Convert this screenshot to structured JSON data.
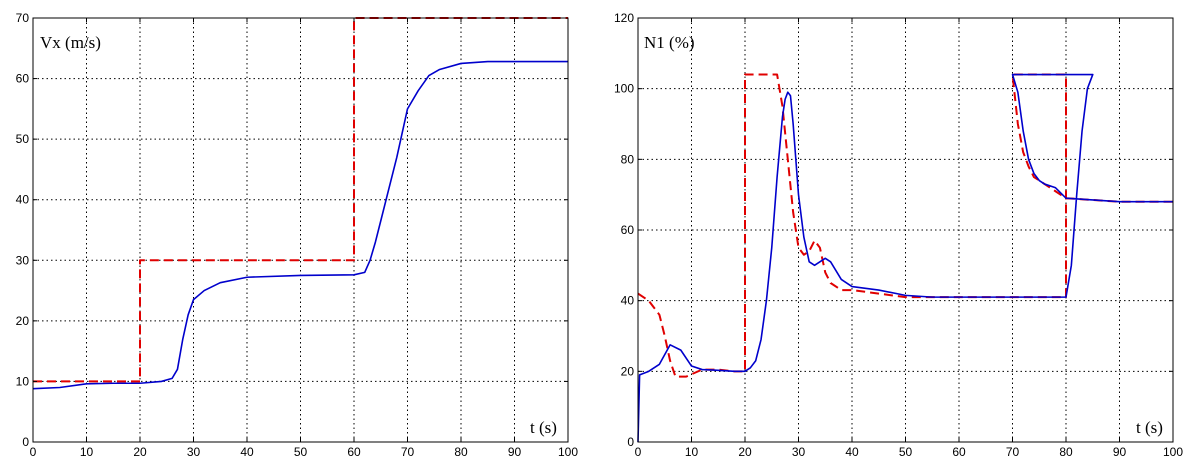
{
  "chart_data": [
    {
      "type": "line",
      "title": "",
      "xlabel": "t (s)",
      "ylabel": "Vx (m/s)",
      "xlim": [
        0,
        100
      ],
      "ylim": [
        0,
        70
      ],
      "xticks": [
        0,
        10,
        20,
        30,
        40,
        50,
        60,
        70,
        80,
        90,
        100
      ],
      "yticks": [
        0,
        10,
        20,
        30,
        40,
        50,
        60,
        70
      ],
      "grid": true,
      "series": [
        {
          "color": "#e00000",
          "style": "dashed",
          "x": [
            0,
            20,
            20,
            60,
            60,
            100
          ],
          "y": [
            10,
            10,
            30,
            30,
            70,
            70
          ]
        },
        {
          "color": "#0000cc",
          "style": "solid",
          "x": [
            0,
            5,
            10,
            15,
            20,
            24,
            26,
            27,
            28,
            29,
            30,
            32,
            35,
            40,
            50,
            60,
            62,
            63,
            64,
            66,
            68,
            70,
            72,
            74,
            76,
            80,
            85,
            90,
            100
          ],
          "y": [
            8.8,
            9.0,
            9.6,
            9.7,
            9.7,
            10.0,
            10.5,
            12,
            17,
            21,
            23.5,
            25,
            26.3,
            27.2,
            27.5,
            27.6,
            28,
            30,
            33,
            40,
            47,
            55,
            58,
            60.5,
            61.5,
            62.5,
            62.8,
            62.8,
            62.8
          ]
        }
      ]
    },
    {
      "type": "line",
      "title": "",
      "xlabel": "t (s)",
      "ylabel": "N1 (%)",
      "xlim": [
        0,
        100
      ],
      "ylim": [
        0,
        120
      ],
      "xticks": [
        0,
        10,
        20,
        30,
        40,
        50,
        60,
        70,
        80,
        90,
        100
      ],
      "yticks": [
        0,
        20,
        40,
        60,
        80,
        100,
        120
      ],
      "grid": true,
      "series": [
        {
          "color": "#e00000",
          "style": "dashed",
          "x": [
            0,
            2,
            4,
            5,
            6,
            7,
            9,
            12,
            15,
            18,
            20,
            20,
            26,
            27,
            28,
            29,
            30,
            31,
            32,
            33,
            34,
            35,
            36,
            38,
            40,
            45,
            50,
            55,
            60,
            80,
            80,
            70,
            70,
            71,
            72,
            73,
            74,
            75,
            76,
            78,
            80,
            85,
            90,
            100
          ],
          "y": [
            42,
            40,
            36,
            30,
            23,
            18.5,
            18.5,
            20.5,
            20.5,
            20,
            20,
            104,
            104,
            95,
            80,
            65,
            55,
            53,
            54,
            57,
            55,
            48,
            45,
            43,
            43,
            42,
            41,
            41,
            41,
            41,
            104,
            104,
            104,
            90,
            82,
            78,
            75,
            74,
            73,
            71,
            69,
            68.5,
            68,
            68
          ]
        },
        {
          "color": "#0000cc",
          "style": "solid",
          "x": [
            0,
            0.3,
            2,
            4,
            6,
            8,
            10,
            12,
            15,
            18,
            20,
            21,
            22,
            23,
            24,
            25,
            26,
            27,
            27.5,
            28,
            28.5,
            29,
            30,
            31,
            32,
            33,
            34,
            35,
            36,
            38,
            40,
            45,
            50,
            55,
            60,
            80,
            81,
            82,
            83,
            84,
            85,
            70,
            70,
            71,
            72,
            73,
            74,
            75,
            76,
            78,
            80,
            85,
            90,
            100
          ],
          "y": [
            0,
            19,
            20,
            22,
            27.5,
            26,
            21.5,
            20.5,
            20.3,
            20,
            20,
            21,
            23,
            29,
            40,
            55,
            75,
            92,
            97,
            99,
            98,
            90,
            70,
            58,
            51,
            50,
            51,
            52,
            51,
            46,
            44,
            43,
            41.5,
            41,
            41,
            41,
            50,
            70,
            88,
            100,
            104,
            104,
            104,
            99,
            88,
            80,
            76,
            74,
            73,
            72,
            69,
            68.5,
            68,
            68
          ]
        }
      ]
    }
  ]
}
